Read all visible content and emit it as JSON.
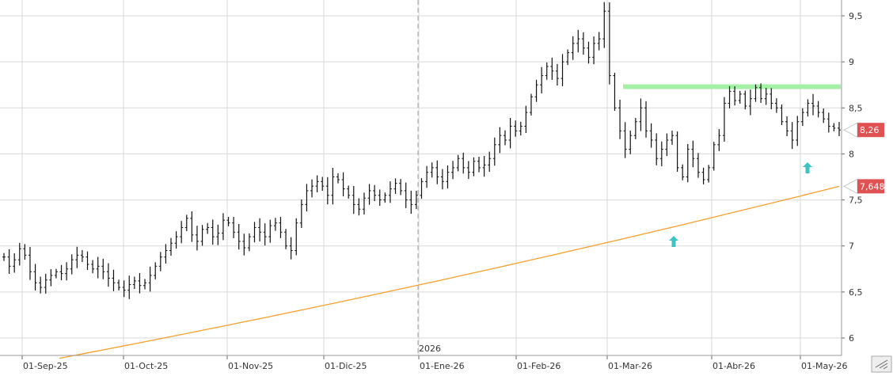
{
  "chart_data": {
    "type": "bar",
    "subtype": "ohlc",
    "period_label": "2026",
    "x_ticks": [
      "01-Sep-25",
      "01-Oct-25",
      "01-Nov-25",
      "01-Dic-25",
      "01-Ene-26",
      "01-Feb-26",
      "01-Mar-26",
      "01-Abr-26",
      "01-May-26"
    ],
    "y_ticks": [
      "9,5",
      "9",
      "8,5",
      "8",
      "7,5",
      "7",
      "6,5",
      "6"
    ],
    "y_tick_values": [
      9.5,
      9,
      8.5,
      8,
      7.5,
      7,
      6.5,
      6
    ],
    "ylim": [
      5.8,
      9.7
    ],
    "grid": true,
    "price_axis": "right",
    "last_price": {
      "label": "8,26",
      "value": 8.26,
      "color": "#e05252"
    },
    "moving_average": {
      "label": "7,648",
      "value": 7.648,
      "color": "#f5a02a",
      "start": 5.78
    },
    "resistance": {
      "value": 8.73,
      "color": "#a4f0a4"
    },
    "signal_arrows": {
      "color": "#3cc3c3"
    },
    "colors": {
      "bars": "#111111",
      "grid": "#d9d9d9",
      "separator": "#a0a0a0"
    },
    "series": [
      {
        "values": [
          6.88,
          6.78,
          6.85,
          6.97,
          6.9,
          6.72,
          6.6,
          6.55,
          6.63,
          6.68,
          6.72,
          6.7,
          6.75,
          6.85,
          6.9,
          6.88,
          6.8,
          6.75,
          6.78,
          6.72,
          6.65,
          6.6,
          6.55,
          6.52,
          6.58,
          6.62,
          6.57,
          6.6,
          6.68,
          6.78,
          6.88,
          6.95,
          7.03,
          7.1,
          7.2,
          7.3,
          7.12,
          7.05,
          7.18,
          7.2,
          7.1,
          7.14,
          7.28,
          7.25,
          7.15,
          7.05,
          6.98,
          7.1,
          7.2,
          7.15,
          7.1,
          7.22,
          7.25,
          7.15,
          7.0,
          6.95,
          7.25,
          7.45,
          7.6,
          7.65,
          7.7,
          7.65,
          7.55,
          7.75,
          7.72,
          7.62,
          7.55,
          7.45,
          7.4,
          7.52,
          7.6,
          7.55,
          7.5,
          7.55,
          7.62,
          7.68,
          7.6,
          7.5,
          7.45,
          7.55,
          7.7,
          7.8,
          7.85,
          7.75,
          7.7,
          7.8,
          7.85,
          7.95,
          7.85,
          7.8,
          7.92,
          7.85,
          7.88,
          7.95,
          8.1,
          8.2,
          8.15,
          8.3,
          8.25,
          8.3,
          8.45,
          8.62,
          8.75,
          8.85,
          8.95,
          8.9,
          8.82,
          9.0,
          9.1,
          9.2,
          9.25,
          9.15,
          9.05,
          9.2,
          9.25,
          9.55,
          8.85,
          8.5,
          8.25,
          8.05,
          8.2,
          8.35,
          8.5,
          8.25,
          8.15,
          7.95,
          8.05,
          8.15,
          8.2,
          7.85,
          7.75,
          8.05,
          7.95,
          7.8,
          7.72,
          7.85,
          8.1,
          8.2,
          8.55,
          8.68,
          8.58,
          8.65,
          8.52,
          8.6,
          8.72,
          8.6,
          8.65,
          8.55,
          8.5,
          8.35,
          8.25,
          8.15,
          8.35,
          8.45,
          8.55,
          8.52,
          8.45,
          8.38,
          8.3,
          8.28,
          8.26
        ]
      }
    ]
  }
}
